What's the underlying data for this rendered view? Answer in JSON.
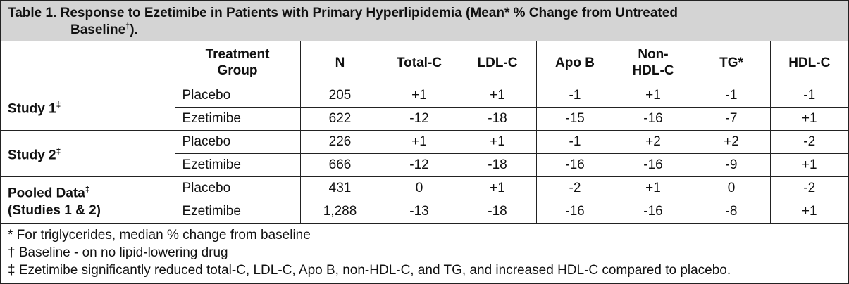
{
  "title": {
    "line1": "Table 1. Response to Ezetimibe in Patients with Primary Hyperlipidemia (Mean* % Change from Untreated",
    "line2": "Baseline",
    "line2_mark": "†",
    "line2_end": ")."
  },
  "headers": {
    "col0": "",
    "treatment_group": "Treatment Group",
    "n": "N",
    "total_c": "Total-C",
    "ldl_c": "LDL-C",
    "apo_b": "Apo B",
    "non_hdl_c": "Non-HDL-C",
    "tg": "TG*",
    "hdl_c": "HDL-C"
  },
  "studies": [
    {
      "name": "Study 1",
      "name2": "",
      "mark": "‡",
      "rows": [
        {
          "group": "Placebo",
          "n": "205",
          "total_c": "+1",
          "ldl_c": "+1",
          "apo_b": "-1",
          "non_hdl_c": "+1",
          "tg": "-1",
          "hdl_c": "-1"
        },
        {
          "group": "Ezetimibe",
          "n": "622",
          "total_c": "-12",
          "ldl_c": "-18",
          "apo_b": "-15",
          "non_hdl_c": "-16",
          "tg": "-7",
          "hdl_c": "+1"
        }
      ]
    },
    {
      "name": "Study 2",
      "name2": "",
      "mark": "‡",
      "rows": [
        {
          "group": "Placebo",
          "n": "226",
          "total_c": "+1",
          "ldl_c": "+1",
          "apo_b": "-1",
          "non_hdl_c": "+2",
          "tg": "+2",
          "hdl_c": "-2"
        },
        {
          "group": "Ezetimibe",
          "n": "666",
          "total_c": "-12",
          "ldl_c": "-18",
          "apo_b": "-16",
          "non_hdl_c": "-16",
          "tg": "-9",
          "hdl_c": "+1"
        }
      ]
    },
    {
      "name": "Pooled Data",
      "name2": "(Studies 1 & 2)",
      "mark": "‡",
      "rows": [
        {
          "group": "Placebo",
          "n": "431",
          "total_c": "0",
          "ldl_c": "+1",
          "apo_b": "-2",
          "non_hdl_c": "+1",
          "tg": "0",
          "hdl_c": "-2"
        },
        {
          "group": "Ezetimibe",
          "n": "1,288",
          "total_c": "-13",
          "ldl_c": "-18",
          "apo_b": "-16",
          "non_hdl_c": "-16",
          "tg": "-8",
          "hdl_c": "+1"
        }
      ]
    }
  ],
  "footnotes": [
    "*  For triglycerides, median % change from baseline",
    "†  Baseline - on no lipid-lowering drug",
    "‡  Ezetimibe significantly reduced total-C, LDL-C, Apo B, non-HDL-C, and TG, and increased HDL-C compared to placebo."
  ]
}
